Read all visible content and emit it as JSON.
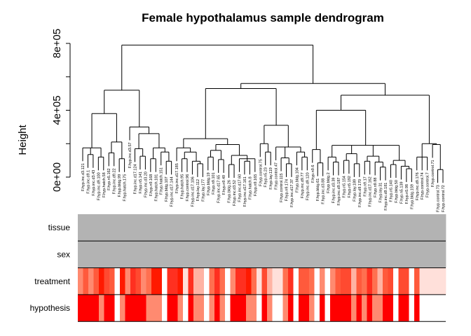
{
  "chart_data": {
    "type": "dendrogram",
    "title": "Female hypothalamus sample dendrogram",
    "ylabel": "Height",
    "ylim": [
      0,
      800000
    ],
    "yticks": [
      {
        "value": 0,
        "label": "0e+00"
      },
      {
        "value": 400000,
        "label": "4e+05"
      },
      {
        "value": 800000,
        "label": "8e+05"
      }
    ],
    "yticks_minor": [
      200000,
      600000
    ],
    "line_color": "#000000",
    "leaves": [
      "F.hyp.inc.d3.121",
      "F.hyp.inc.d9.1",
      "F.hyp.inc.d3.43",
      "F.hyp.inc.d9.100",
      "F.hyp.hatch.58",
      "F.hyp.n5.162",
      "F.hyp.inc.d9.22",
      "F.hyp.bldg.99",
      "F.hyp.hatch.175",
      "F.hyp.inc.d3.57",
      "F.hyp.inc.d17.124",
      "F.hyp.n5.141",
      "F.hyp.inc.d3.20",
      "F.hyp.n9.168",
      "F.hyp.hatch.181",
      "F.hyp.hatch.151",
      "F.hyp.bldg.107",
      "F.hyp.inc.d17.144",
      "F.hyp.inc.d17.185",
      "F.hyp.hatch.95",
      "F.hyp.control.96",
      "F.hyp.inc.d17.106",
      "F.hyp.lay.112",
      "F.hyp.lay.177",
      "F.hyp.bldg.19",
      "F.hyp.n9.101",
      "F.hyp.inc.d17.65",
      "F.hyp.n9.49",
      "F.hyp.bldg.26",
      "F.hyp.inc.d3.52",
      "F.hyp.inc.d17.60",
      "F.hyp.inc.d17.161",
      "F.hyp.hatch.8",
      "F.hyp.n9.165",
      "F.hyp.control.75",
      "F.hyp.n5.23",
      "F.hyp.lay.119",
      "F.hyp.control.47",
      "F.hyp.control.115",
      "F.hyp.n9.174",
      "F.hyp.inc.d17.37",
      "F.hyp.bldg.104",
      "F.hyp.inc.d9.77",
      "F.hyp.inc.d9.120",
      "F.hyp.n9.6",
      "F.hyp.bldg.61",
      "F.hyp.inc.d3.88",
      "F.hyp.bldg.2",
      "F.hyp.inc.d3.39",
      "F.hyp.inc.d9.187",
      "F.hyp.n5.154",
      "F.hyp.n5.192",
      "F.hyp.lay.189",
      "F.hyp.inc.d9.170",
      "F.hyp.n9.17",
      "F.hyp.inc.d17.162",
      "F.hyp.n9.88",
      "F.hyp.lay.31",
      "F.hyp.inc.d9.181",
      "F.hyp.n5.140",
      "F.hyp.bldg.50",
      "F.hyp.n5.139",
      "F.hyp.n5.98",
      "F.hyp.bldg.159",
      "F.hyp.inc.d9.176",
      "F.hyp.control.74",
      "F.hyp.control.7",
      "F.hyp.control.71",
      "F.hyp.control.73",
      "F.hyp.control.72"
    ],
    "tree": {
      "h": 790000,
      "c": [
        {
          "h": 520000,
          "c": [
            {
              "h": 380000,
              "c": [
                {
                  "h": 175000,
                  "c": [
                    0,
                    {
                      "h": 135000,
                      "c": [
                        1,
                        2
                      ]
                    },
                    {
                      "h": 120000,
                      "c": [
                        3,
                        4
                      ]
                    }
                  ]
                },
                {
                  "h": 210000,
                  "c": [
                    {
                      "h": 145000,
                      "c": [
                        5,
                        6
                      ]
                    },
                    {
                      "h": 110000,
                      "c": [
                        7,
                        8
                      ]
                    }
                  ]
                }
              ]
            },
            {
              "h": 300000,
              "c": [
                9,
                {
                  "h": 260000,
                  "c": [
                    {
                      "h": 170000,
                      "c": [
                        10,
                        {
                          "h": 125000,
                          "c": [
                            11,
                            12
                          ]
                        }
                      ]
                    },
                    {
                      "h": 175000,
                      "c": [
                        {
                          "h": 110000,
                          "c": [
                            13,
                            14
                          ]
                        },
                        {
                          "h": 150000,
                          "c": [
                            15,
                            {
                              "h": 95000,
                              "c": [
                                16,
                                17
                              ]
                            }
                          ]
                        }
                      ]
                    }
                  ]
                }
              ]
            }
          ]
        },
        {
          "h": 560000,
          "c": [
            {
              "h": 530000,
              "c": [
                {
                  "h": 230000,
                  "c": [
                    {
                      "h": 175000,
                      "c": [
                        18,
                        {
                          "h": 150000,
                          "c": [
                            {
                              "h": 110000,
                              "c": [
                                19,
                                20
                              ]
                            },
                            {
                              "h": 95000,
                              "c": [
                                21,
                                {
                                  "h": 80000,
                                  "c": [
                                    22,
                                    23
                                  ]
                                }
                              ]
                            }
                          ]
                        }
                      ]
                    },
                    {
                      "h": 195000,
                      "c": [
                        {
                          "h": 160000,
                          "c": [
                            {
                              "h": 120000,
                              "c": [
                                24,
                                25
                              ]
                            },
                            {
                              "h": 105000,
                              "c": [
                                26,
                                27
                              ]
                            }
                          ]
                        },
                        {
                          "h": 130000,
                          "c": [
                            {
                              "h": 75000,
                              "c": [
                                28,
                                29
                              ]
                            },
                            {
                              "h": 110000,
                              "c": [
                                30,
                                {
                                  "h": 95000,
                                  "c": [
                                    31,
                                    32
                                  ]
                                },
                                33
                              ]
                            }
                          ]
                        }
                      ]
                    }
                  ]
                },
                {
                  "h": 310000,
                  "c": [
                    {
                      "h": 200000,
                      "c": [
                        34,
                        {
                          "h": 150000,
                          "c": [
                            35,
                            36
                          ]
                        }
                      ]
                    },
                    {
                      "h": 180000,
                      "c": [
                        37,
                        {
                          "h": 115000,
                          "c": [
                            38,
                            {
                              "h": 80000,
                              "c": [
                                39,
                                40
                              ]
                            }
                          ]
                        },
                        {
                          "h": 150000,
                          "c": [
                            41,
                            {
                              "h": 120000,
                              "c": [
                                42,
                                43
                              ]
                            }
                          ]
                        }
                      ]
                    }
                  ]
                }
              ]
            },
            {
              "h": 490000,
              "c": [
                {
                  "h": 400000,
                  "c": [
                    {
                      "h": 165000,
                      "c": [
                        44,
                        {
                          "h": 85000,
                          "c": [
                            45,
                            46
                          ]
                        }
                      ]
                    },
                    {
                      "h": 190000,
                      "c": [
                        {
                          "h": 120000,
                          "c": [
                            47,
                            {
                              "h": 90000,
                              "c": [
                                48,
                                49
                              ]
                            }
                          ]
                        },
                        {
                          "h": 140000,
                          "c": [
                            {
                              "h": 100000,
                              "c": [
                                50,
                                51
                              ]
                            },
                            {
                              "h": 80000,
                              "c": [
                                52,
                                53
                              ]
                            }
                          ]
                        },
                        {
                          "h": 125000,
                          "c": [
                            {
                              "h": 95000,
                              "c": [
                                54,
                                55
                              ]
                            },
                            {
                              "h": 90000,
                              "c": [
                                56,
                                {
                                  "h": 60000,
                                  "c": [
                                    57,
                                    58
                                  ]
                                }
                              ]
                            }
                          ]
                        },
                        {
                          "h": 100000,
                          "c": [
                            {
                              "h": 75000,
                              "c": [
                                59,
                                60
                              ]
                            },
                            {
                              "h": 65000,
                              "c": [
                                61,
                                {
                                  "h": 50000,
                                  "c": [
                                    62,
                                    63
                                  ]
                                }
                              ]
                            }
                          ]
                        }
                      ]
                    }
                  ]
                },
                {
                  "h": 200000,
                  "c": [
                    {
                      "h": 120000,
                      "c": [
                        64,
                        65,
                        66
                      ]
                    },
                    {
                      "h": 195000,
                      "c": [
                        67,
                        {
                          "h": 45000,
                          "c": [
                            68,
                            69
                          ]
                        }
                      ]
                    }
                  ]
                }
              ]
            }
          ]
        }
      ]
    },
    "color_rows": [
      {
        "name": "tissue",
        "colors": [
          "#b3b3b3"
        ]
      },
      {
        "name": "sex",
        "colors": [
          "#b3b3b3"
        ]
      },
      {
        "name": "treatment",
        "colors": [
          "#ff8a70",
          "#ff5a3c",
          "#ff8a70",
          "#ff5a3c",
          "#ff1a00",
          "#ff4a30",
          "#ff5a3c",
          "#ffffff",
          "#ff1a00",
          "#ff8a70",
          "#ff3020",
          "#ff4a30",
          "#ff8a70",
          "#ff7050",
          "#ff1a00",
          "#ff1a00",
          "#ffffff",
          "#ff3020",
          "#ff3020",
          "#ff1a00",
          "#ffe0da",
          "#ff3020",
          "#ffb3a3",
          "#ffb3a3",
          "#ffffff",
          "#ff7050",
          "#ff3020",
          "#ff7050",
          "#ffffff",
          "#ff8a70",
          "#ff3020",
          "#ff3020",
          "#ff1a00",
          "#ff7050",
          "#ffe0da",
          "#ff4a30",
          "#ffb3a3",
          "#ffe0da",
          "#ffe0da",
          "#ff7050",
          "#ff3020",
          "#ffffff",
          "#ff5a3c",
          "#ff5a3c",
          "#ff7050",
          "#ffffff",
          "#ff8a70",
          "#ffffff",
          "#ff8a70",
          "#ff5a3c",
          "#ff4a30",
          "#ff4a30",
          "#ffb3a3",
          "#ff5a3c",
          "#ff7050",
          "#ff3020",
          "#ff7050",
          "#ffb3a3",
          "#ff5a3c",
          "#ff4a30",
          "#ffffff",
          "#ff4a30",
          "#ff4a30",
          "#ffffff",
          "#ff5a3c",
          "#ffe0da",
          "#ffe0da",
          "#ffe0da",
          "#ffe0da",
          "#ffe0da"
        ]
      },
      {
        "name": "hypothesis",
        "colors": [
          "#ff0000",
          "#ff0000",
          "#ff0000",
          "#ff0000",
          "#ff8a70",
          "#ff0000",
          "#ff0000",
          "#ffffff",
          "#ff8a70",
          "#ff0000",
          "#ff0000",
          "#ff0000",
          "#ff0000",
          "#ff8a70",
          "#ff8a70",
          "#ff8a70",
          "#ffffff",
          "#ff0000",
          "#ff0000",
          "#ff8a70",
          "#ffffff",
          "#ff0000",
          "#ff8a70",
          "#ff8a70",
          "#ffffff",
          "#ff8a70",
          "#ff0000",
          "#ff8a70",
          "#ffffff",
          "#ff0000",
          "#ff0000",
          "#ff0000",
          "#ff8a70",
          "#ff8a70",
          "#ffffff",
          "#ff0000",
          "#ff8a70",
          "#ffffff",
          "#ffffff",
          "#ff8a70",
          "#ff0000",
          "#ffffff",
          "#ff0000",
          "#ff0000",
          "#ff8a70",
          "#ffffff",
          "#ff0000",
          "#ffffff",
          "#ff0000",
          "#ff0000",
          "#ff0000",
          "#ff0000",
          "#ff8a70",
          "#ff0000",
          "#ff8a70",
          "#ff0000",
          "#ff8a70",
          "#ff8a70",
          "#ff0000",
          "#ff0000",
          "#ffffff",
          "#ff0000",
          "#ff0000",
          "#ffffff",
          "#ff0000",
          "#ffffff",
          "#ffffff",
          "#ffffff",
          "#ffffff",
          "#ffffff"
        ]
      }
    ]
  }
}
